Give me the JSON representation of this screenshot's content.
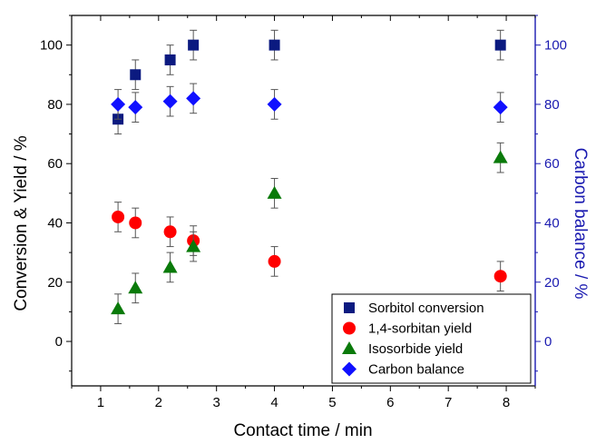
{
  "chart_data": {
    "type": "scatter",
    "title": "",
    "xlabel": "Contact time / min",
    "ylabel": "Conversion & Yield / %",
    "y2label": "Carbon balance / %",
    "xlim": [
      0.5,
      8.5
    ],
    "ylim": [
      -15,
      110
    ],
    "y2lim": [
      -15,
      110
    ],
    "xticks": [
      "1",
      "2",
      "3",
      "4",
      "5",
      "6",
      "7",
      "8"
    ],
    "yticks": [
      "0",
      "20",
      "40",
      "60",
      "80",
      "100"
    ],
    "y2ticks": [
      "0",
      "20",
      "40",
      "60",
      "80",
      "100"
    ],
    "grid": false,
    "legend_position": "bottom-right",
    "colors": {
      "left_axis": "#000000",
      "right_axis": "#1a1ab0"
    },
    "series": [
      {
        "name": "Sorbitol conversion",
        "marker": "square",
        "color": "#0b1a80",
        "axis": "left",
        "x": [
          1.3,
          1.6,
          2.2,
          2.6,
          4.0,
          7.9
        ],
        "y": [
          75,
          90,
          95,
          100,
          100,
          100
        ],
        "err": [
          5,
          5,
          5,
          5,
          5,
          5
        ]
      },
      {
        "name": "1,4-sorbitan yield",
        "marker": "circle",
        "color": "#ff0000",
        "axis": "left",
        "x": [
          1.3,
          1.6,
          2.2,
          2.6,
          4.0,
          7.9
        ],
        "y": [
          42,
          40,
          37,
          34,
          27,
          22
        ],
        "err": [
          5,
          5,
          5,
          5,
          5,
          5
        ]
      },
      {
        "name": "Isosorbide yield",
        "marker": "triangle",
        "color": "#0a7a0a",
        "axis": "left",
        "x": [
          1.3,
          1.6,
          2.2,
          2.6,
          4.0,
          7.9
        ],
        "y": [
          11,
          18,
          25,
          32,
          50,
          62
        ],
        "err": [
          5,
          5,
          5,
          5,
          5,
          5
        ]
      },
      {
        "name": "Carbon balance",
        "marker": "diamond",
        "color": "#1010ff",
        "axis": "right",
        "x": [
          1.3,
          1.6,
          2.2,
          2.6,
          4.0,
          7.9
        ],
        "y": [
          80,
          79,
          81,
          82,
          80,
          79
        ],
        "err": [
          5,
          5,
          5,
          5,
          5,
          5
        ]
      }
    ]
  }
}
